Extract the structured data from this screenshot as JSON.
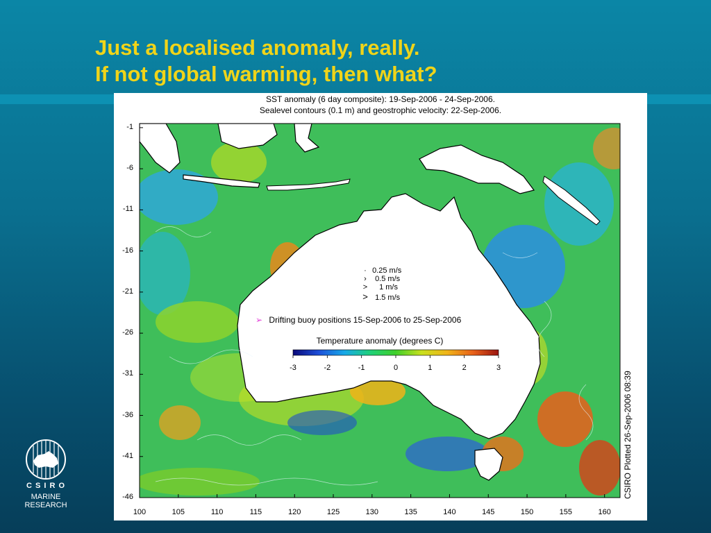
{
  "slide": {
    "title_line1": "Just a localised anomaly, really.",
    "title_line2": "If not global warming, then what?"
  },
  "figure": {
    "caption_line1": "SST anomaly (6 day composite): 19-Sep-2006 - 24-Sep-2006.",
    "caption_line2": "Sealevel contours (0.1 m) and geostrophic velocity: 22-Sep-2006.",
    "plotted": "CSIRO Plotted 26-Sep-2006 08:39",
    "lat_ticks": [
      "-1",
      "-6",
      "-11",
      "-16",
      "-21",
      "-26",
      "-31",
      "-36",
      "-41",
      "-46"
    ],
    "lon_ticks": [
      "100",
      "105",
      "110",
      "115",
      "120",
      "125",
      "130",
      "135",
      "140",
      "145",
      "150",
      "155",
      "160"
    ],
    "extent": {
      "lon": [
        100,
        162
      ],
      "lat": [
        -46,
        -0.5
      ]
    },
    "velocity_legend": [
      {
        "symbol": "·",
        "label": "0.25 m/s"
      },
      {
        "symbol": "›",
        "label": "0.5 m/s"
      },
      {
        "symbol": ">",
        "label": "1 m/s"
      },
      {
        "symbol": ">",
        "label": "1.5 m/s"
      }
    ],
    "buoy_legend": {
      "symbol": "➢",
      "label": "Drifting buoy positions 15-Sep-2006 to 25-Sep-2006",
      "color": "#e23ad8"
    },
    "colorbar": {
      "title": "Temperature anomaly (degrees C)",
      "ticks": [
        "-3",
        "-2",
        "-1",
        "0",
        "1",
        "2",
        "3"
      ],
      "range": [
        -3,
        3
      ],
      "colors": [
        "#0a0a7a",
        "#1d4fd8",
        "#17a8e8",
        "#1fd07a",
        "#3fcf2a",
        "#c8e01e",
        "#f0b419",
        "#e8621a",
        "#9a1410"
      ]
    }
  },
  "logo": {
    "org": "C S I R O",
    "division": "MARINE RESEARCH"
  }
}
